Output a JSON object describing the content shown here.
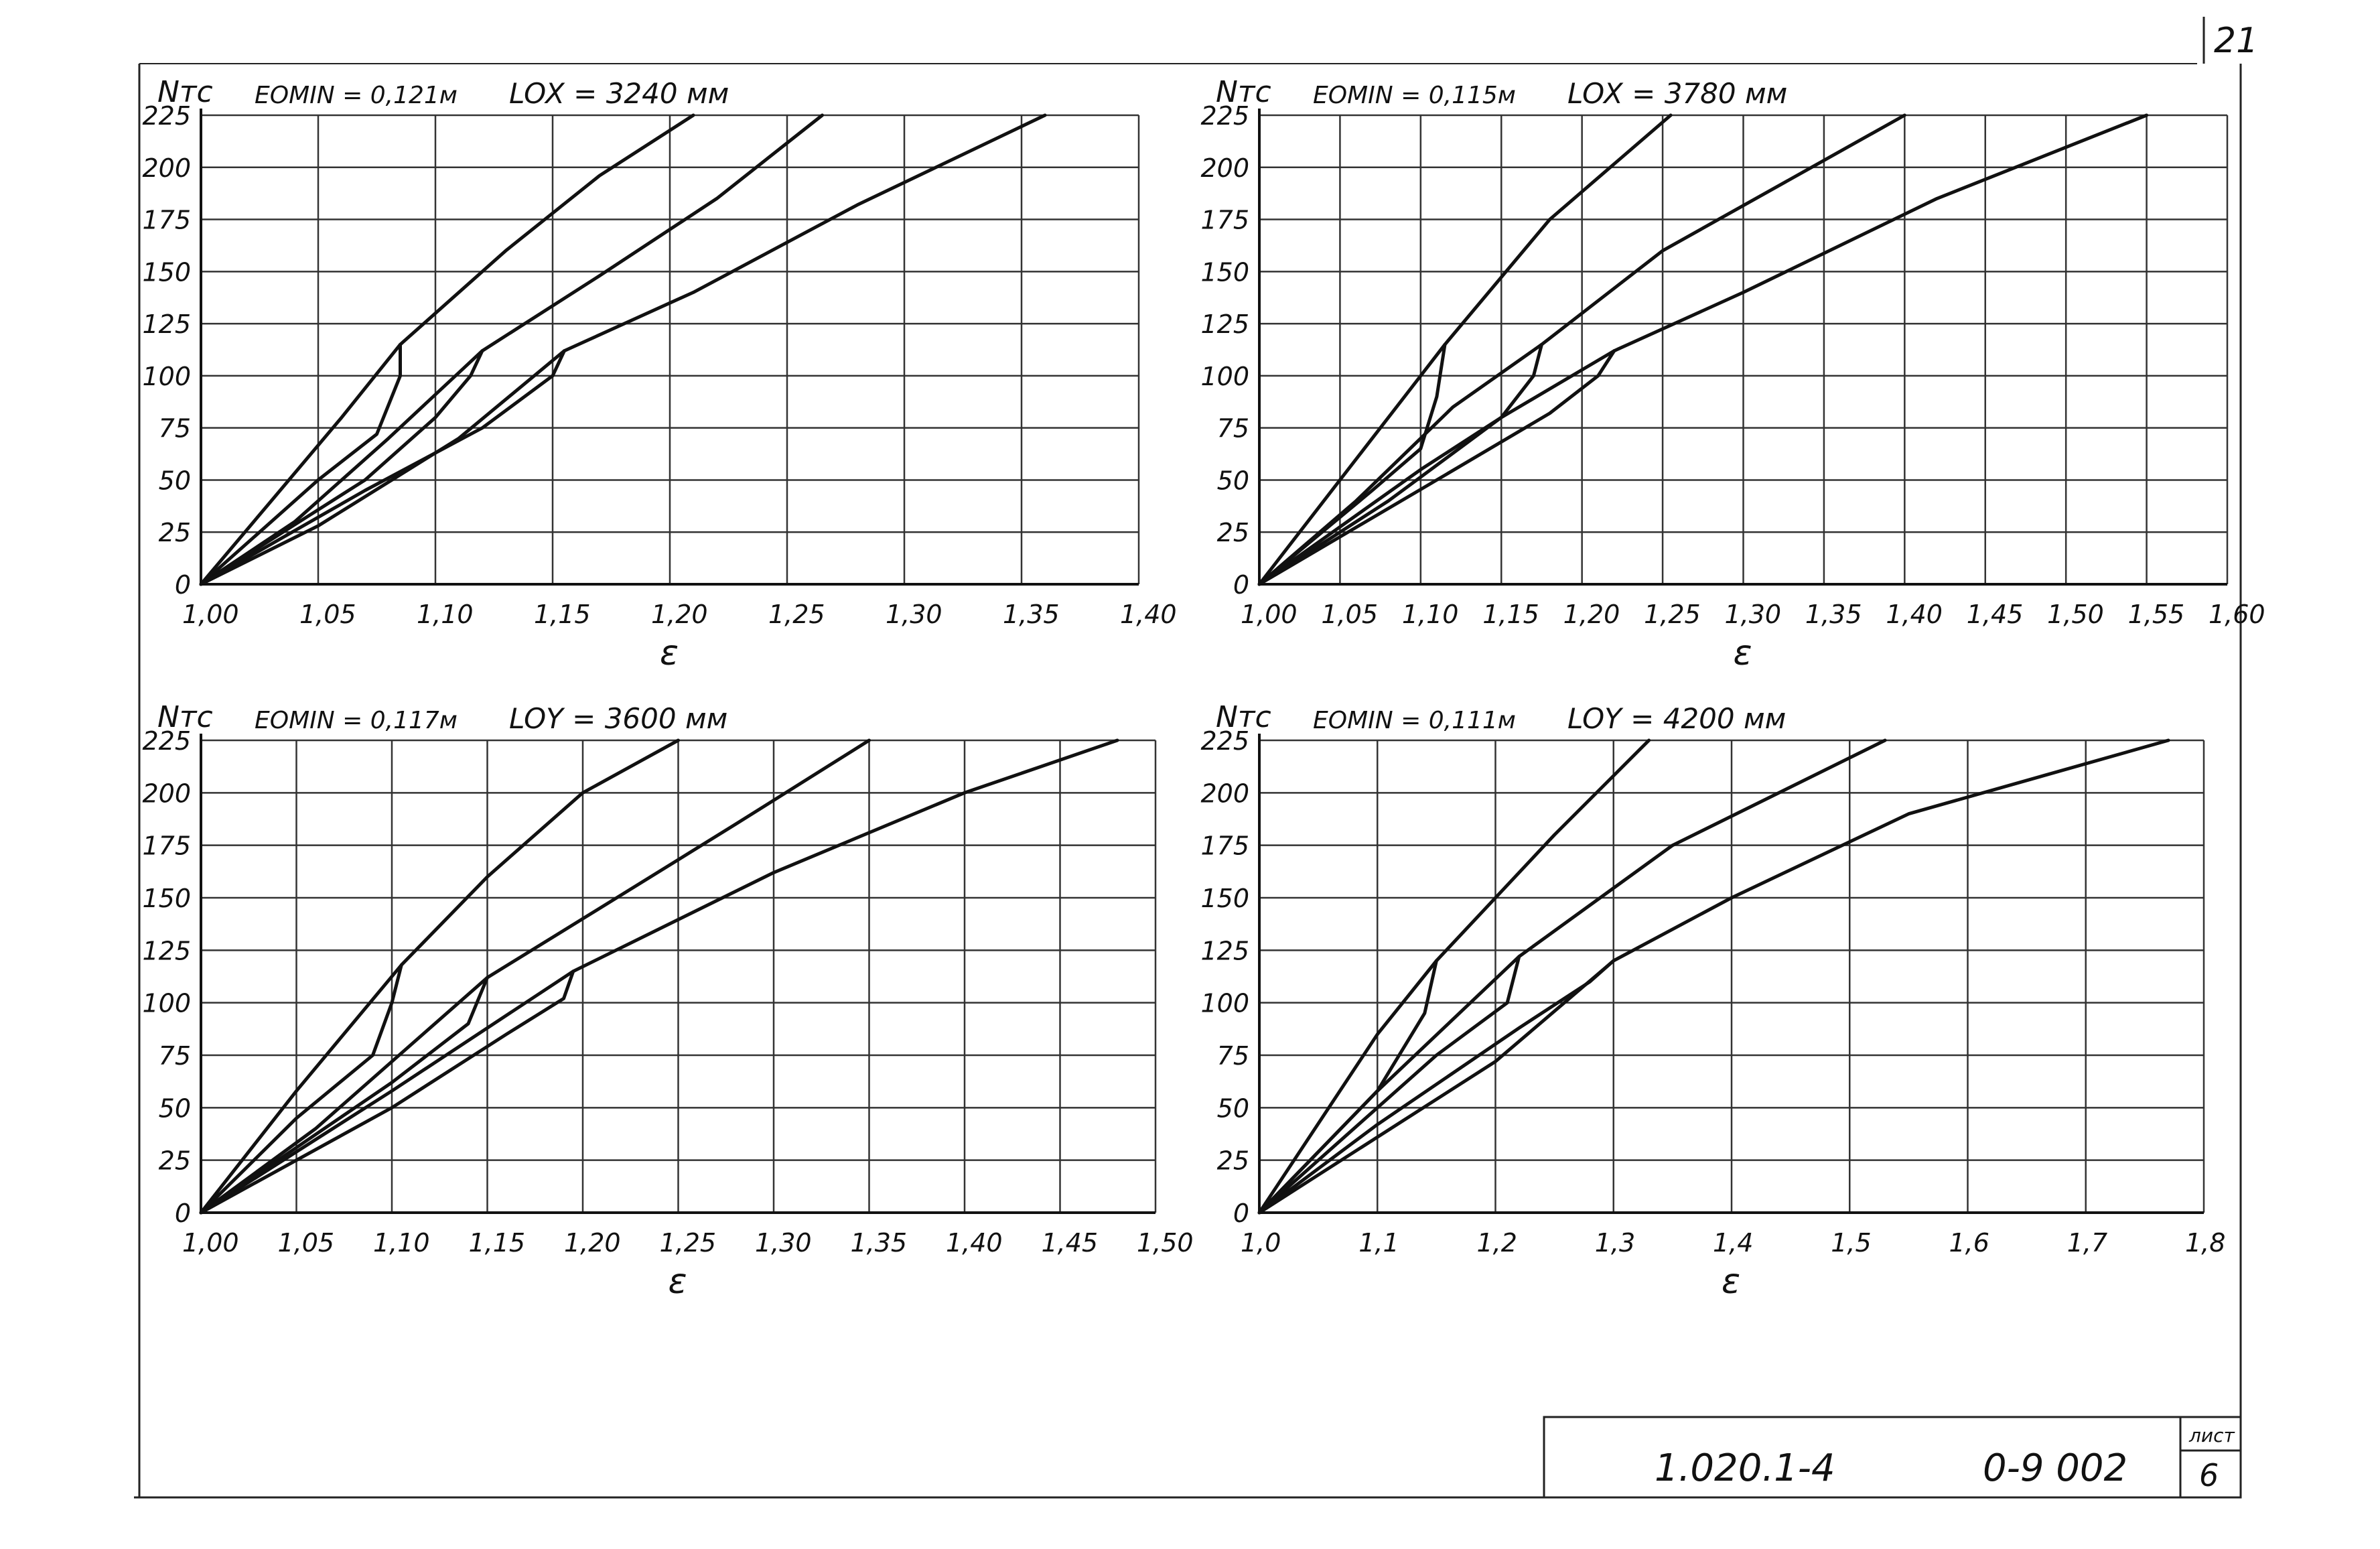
{
  "page": {
    "page_number": "21",
    "stamp_code": "1.020.1-4",
    "stamp_doc": "0-9 002",
    "sheet_label": "лист",
    "sheet_number": "6"
  },
  "chart_data": [
    {
      "type": "line",
      "header": {
        "n_label": "Nтс",
        "emin": "EOMIN = 0,121м",
        "length": "LOX = 3240 мм"
      },
      "xlabel": "ε",
      "xlim": [
        1.0,
        1.4
      ],
      "ylim": [
        0,
        225
      ],
      "x_ticks": [
        "1,00",
        "1,05",
        "1,10",
        "1,15",
        "1,20",
        "1,25",
        "1,30",
        "1,35",
        "1,40"
      ],
      "y_ticks": [
        "0",
        "25",
        "50",
        "75",
        "100",
        "125",
        "150",
        "175",
        "200",
        "225"
      ],
      "grid": true,
      "series": [
        {
          "points": [
            [
              1.0,
              0
            ],
            [
              1.03,
              40
            ],
            [
              1.06,
              80
            ],
            [
              1.085,
              115
            ],
            [
              1.13,
              160
            ],
            [
              1.17,
              196
            ],
            [
              1.21,
              225
            ]
          ]
        },
        {
          "points": [
            [
              1.0,
              0
            ],
            [
              1.04,
              30
            ],
            [
              1.08,
              70
            ],
            [
              1.12,
              112
            ],
            [
              1.17,
              148
            ],
            [
              1.22,
              185
            ],
            [
              1.265,
              225
            ]
          ]
        },
        {
          "points": [
            [
              1.0,
              0
            ],
            [
              1.05,
              28
            ],
            [
              1.11,
              70
            ],
            [
              1.155,
              112
            ],
            [
              1.21,
              140
            ],
            [
              1.28,
              182
            ],
            [
              1.36,
              225
            ]
          ]
        },
        {
          "points": [
            [
              1.0,
              0
            ],
            [
              1.05,
              50
            ],
            [
              1.075,
              72
            ],
            [
              1.085,
              100
            ],
            [
              1.085,
              115
            ]
          ]
        },
        {
          "points": [
            [
              1.0,
              0
            ],
            [
              1.07,
              50
            ],
            [
              1.1,
              80
            ],
            [
              1.115,
              100
            ],
            [
              1.12,
              112
            ]
          ]
        },
        {
          "points": [
            [
              1.0,
              0
            ],
            [
              1.07,
              45
            ],
            [
              1.12,
              75
            ],
            [
              1.15,
              100
            ],
            [
              1.155,
              112
            ]
          ]
        }
      ]
    },
    {
      "type": "line",
      "header": {
        "n_label": "Nтс",
        "emin": "EOMIN = 0,115м",
        "length": "LOX = 3780 мм"
      },
      "xlabel": "ε",
      "xlim": [
        1.0,
        1.6
      ],
      "ylim": [
        0,
        225
      ],
      "x_ticks": [
        "1,00",
        "1,05",
        "1,10",
        "1,15",
        "1,20",
        "1,25",
        "1,30",
        "1,35",
        "1,40",
        "1,45",
        "1,50",
        "1,55",
        "1,60"
      ],
      "y_ticks": [
        "0",
        "25",
        "50",
        "75",
        "100",
        "125",
        "150",
        "175",
        "200",
        "225"
      ],
      "grid": true,
      "series": [
        {
          "points": [
            [
              1.0,
              0
            ],
            [
              1.05,
              50
            ],
            [
              1.09,
              90
            ],
            [
              1.115,
              115
            ],
            [
              1.18,
              175
            ],
            [
              1.255,
              225
            ]
          ]
        },
        {
          "points": [
            [
              1.0,
              0
            ],
            [
              1.06,
              40
            ],
            [
              1.12,
              85
            ],
            [
              1.175,
              115
            ],
            [
              1.25,
              160
            ],
            [
              1.4,
              225
            ]
          ]
        },
        {
          "points": [
            [
              1.0,
              0
            ],
            [
              1.08,
              40
            ],
            [
              1.15,
              80
            ],
            [
              1.22,
              112
            ],
            [
              1.3,
              140
            ],
            [
              1.42,
              185
            ],
            [
              1.55,
              225
            ]
          ]
        },
        {
          "points": [
            [
              1.0,
              0
            ],
            [
              1.07,
              45
            ],
            [
              1.1,
              65
            ],
            [
              1.11,
              90
            ],
            [
              1.115,
              115
            ]
          ]
        },
        {
          "points": [
            [
              1.0,
              0
            ],
            [
              1.1,
              55
            ],
            [
              1.15,
              80
            ],
            [
              1.17,
              100
            ],
            [
              1.175,
              115
            ]
          ]
        },
        {
          "points": [
            [
              1.0,
              0
            ],
            [
              1.11,
              50
            ],
            [
              1.18,
              82
            ],
            [
              1.21,
              100
            ],
            [
              1.22,
              112
            ]
          ]
        }
      ]
    },
    {
      "type": "line",
      "header": {
        "n_label": "Nтс",
        "emin": "EOMIN = 0,117м",
        "length": "LOY = 3600 мм"
      },
      "xlabel": "ε",
      "xlim": [
        1.0,
        1.5
      ],
      "ylim": [
        0,
        225
      ],
      "x_ticks": [
        "1,00",
        "1,05",
        "1,10",
        "1,15",
        "1,20",
        "1,25",
        "1,30",
        "1,35",
        "1,40",
        "1,45",
        "1,50"
      ],
      "y_ticks": [
        "0",
        "25",
        "50",
        "75",
        "100",
        "125",
        "150",
        "175",
        "200",
        "225"
      ],
      "grid": true,
      "series": [
        {
          "points": [
            [
              1.0,
              0
            ],
            [
              1.05,
              58
            ],
            [
              1.105,
              118
            ],
            [
              1.15,
              160
            ],
            [
              1.2,
              200
            ],
            [
              1.25,
              225
            ]
          ]
        },
        {
          "points": [
            [
              1.0,
              0
            ],
            [
              1.06,
              40
            ],
            [
              1.15,
              112
            ],
            [
              1.2,
              140
            ],
            [
              1.28,
              185
            ],
            [
              1.35,
              225
            ]
          ]
        },
        {
          "points": [
            [
              1.0,
              0
            ],
            [
              1.1,
              58
            ],
            [
              1.195,
              115
            ],
            [
              1.3,
              162
            ],
            [
              1.4,
              200
            ],
            [
              1.48,
              225
            ]
          ]
        },
        {
          "points": [
            [
              1.0,
              0
            ],
            [
              1.05,
              45
            ],
            [
              1.09,
              75
            ],
            [
              1.1,
              100
            ],
            [
              1.105,
              118
            ]
          ]
        },
        {
          "points": [
            [
              1.0,
              0
            ],
            [
              1.1,
              62
            ],
            [
              1.14,
              90
            ],
            [
              1.15,
              112
            ]
          ]
        },
        {
          "points": [
            [
              1.0,
              0
            ],
            [
              1.1,
              50
            ],
            [
              1.16,
              85
            ],
            [
              1.19,
              102
            ],
            [
              1.195,
              115
            ]
          ]
        }
      ]
    },
    {
      "type": "line",
      "header": {
        "n_label": "Nтс",
        "emin": "EOMIN = 0,111м",
        "length": "LOY = 4200 мм"
      },
      "xlabel": "ε",
      "xlim": [
        1.0,
        1.8
      ],
      "ylim": [
        0,
        225
      ],
      "x_ticks": [
        "1,0",
        "1,1",
        "1,2",
        "1,3",
        "1,4",
        "1,5",
        "1,6",
        "1,7",
        "1,8"
      ],
      "y_ticks": [
        "0",
        "25",
        "50",
        "75",
        "100",
        "125",
        "150",
        "175",
        "200",
        "225"
      ],
      "grid": true,
      "series": [
        {
          "points": [
            [
              1.0,
              0
            ],
            [
              1.1,
              85
            ],
            [
              1.15,
              120
            ],
            [
              1.25,
              180
            ],
            [
              1.33,
              225
            ]
          ]
        },
        {
          "points": [
            [
              1.0,
              0
            ],
            [
              1.1,
              58
            ],
            [
              1.22,
              122
            ],
            [
              1.35,
              175
            ],
            [
              1.53,
              225
            ]
          ]
        },
        {
          "points": [
            [
              1.0,
              0
            ],
            [
              1.2,
              72
            ],
            [
              1.3,
              120
            ],
            [
              1.4,
              150
            ],
            [
              1.55,
              190
            ],
            [
              1.77,
              225
            ]
          ]
        },
        {
          "points": [
            [
              1.0,
              0
            ],
            [
              1.1,
              58
            ],
            [
              1.14,
              95
            ],
            [
              1.15,
              120
            ]
          ]
        },
        {
          "points": [
            [
              1.0,
              0
            ],
            [
              1.15,
              75
            ],
            [
              1.21,
              100
            ],
            [
              1.22,
              122
            ]
          ]
        },
        {
          "points": [
            [
              1.0,
              0
            ],
            [
              1.1,
              42
            ],
            [
              1.22,
              88
            ],
            [
              1.28,
              110
            ],
            [
              1.3,
              120
            ]
          ]
        }
      ]
    }
  ]
}
